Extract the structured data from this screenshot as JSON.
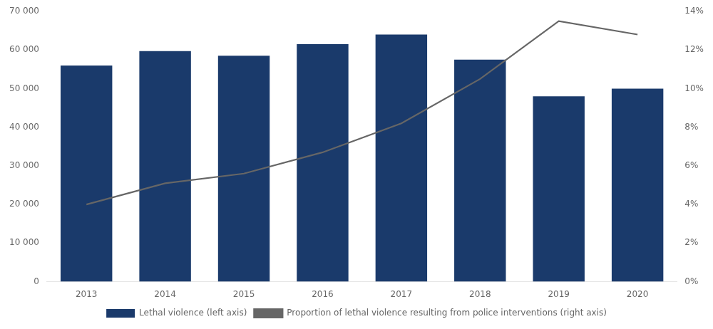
{
  "chart_data": {
    "type": "bar",
    "categories": [
      "2013",
      "2014",
      "2015",
      "2016",
      "2017",
      "2018",
      "2019",
      "2020"
    ],
    "series": [
      {
        "name": "Lethal violence (left axis)",
        "type": "bar",
        "color": "#1a3a6b",
        "values": [
          56000,
          59700,
          58500,
          61500,
          64000,
          57500,
          48000,
          50000
        ]
      },
      {
        "name": "Proportion of lethal violence resulting from police interventions (right axis)",
        "type": "line",
        "color": "#666666",
        "axis": "y2",
        "marker": "none",
        "values": [
          0.04,
          0.051,
          0.056,
          0.067,
          0.082,
          0.105,
          0.135,
          0.128
        ]
      }
    ],
    "ylim": [
      0,
      70000
    ],
    "yticks": [
      0,
      {
        "value": 10000,
        "label": "10 000"
      },
      {
        "value": 20000,
        "label": "20 000"
      },
      {
        "value": 30000,
        "label": "30 000"
      },
      {
        "value": 40000,
        "label": "40 000"
      },
      {
        "value": 50000,
        "label": "50 000"
      },
      {
        "value": 60000,
        "label": "60 000"
      },
      {
        "value": 70000,
        "label": "70 000"
      }
    ],
    "y2lim": [
      0,
      0.14
    ],
    "y2ticks": [
      {
        "value": 0.0,
        "label": "0%"
      },
      {
        "value": 0.02,
        "label": "2%"
      },
      {
        "value": 0.04,
        "label": "4%"
      },
      {
        "value": 0.06,
        "label": "6%"
      },
      {
        "value": 0.08,
        "label": "8%"
      },
      {
        "value": 0.1,
        "label": "10%"
      },
      {
        "value": 0.12,
        "label": "12%"
      },
      {
        "value": 0.14,
        "label": "14%"
      }
    ],
    "grid": false,
    "legend": "bottom"
  }
}
